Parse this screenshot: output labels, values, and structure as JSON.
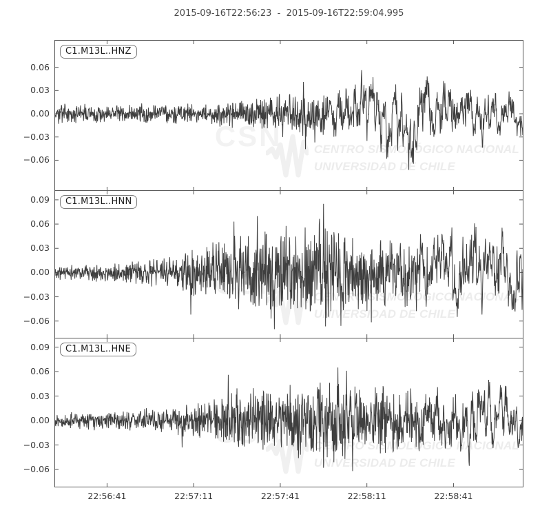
{
  "title": "2015-09-16T22:56:23  -  2015-09-16T22:59:04.995",
  "colors": {
    "waveform": "#3f3f3f",
    "axis": "#555555",
    "tick_label": "#3a3a3a",
    "title_text": "#4a4a4a",
    "watermark": "#ececec",
    "label_box_border": "#7d7d7d"
  },
  "watermark": {
    "acronym": "CSN",
    "line1": "CENTRO SISMOLÓGICO NACIONAL",
    "line2": "UNIVERSIDAD DE CHILE"
  },
  "xaxis": {
    "start": "2015-09-16T22:56:23",
    "end": "2015-09-16T22:59:04.995",
    "duration_seconds": 161.995,
    "ticks": [
      {
        "t": 18,
        "label": "22:56:41"
      },
      {
        "t": 48,
        "label": "22:57:11"
      },
      {
        "t": 78,
        "label": "22:57:41"
      },
      {
        "t": 108,
        "label": "22:58:11"
      },
      {
        "t": 138,
        "label": "22:58:41"
      }
    ]
  },
  "chart_data": [
    {
      "type": "line",
      "label": "C1.M13L..HNZ",
      "ylim": [
        -0.0988,
        0.0944
      ],
      "yticks": [
        {
          "v": 0.06,
          "label": "0.06"
        },
        {
          "v": 0.03,
          "label": "0.03"
        },
        {
          "v": 0.0,
          "label": "0.00"
        },
        {
          "v": -0.03,
          "label": "−0.03"
        },
        {
          "v": -0.06,
          "label": "−0.06"
        }
      ],
      "envelope": {
        "t": [
          0,
          20,
          40,
          55,
          65,
          75,
          85,
          95,
          105,
          115,
          125,
          135,
          145,
          155,
          162
        ],
        "amp": [
          0.011,
          0.011,
          0.012,
          0.014,
          0.017,
          0.021,
          0.025,
          0.027,
          0.029,
          0.03,
          0.027,
          0.023,
          0.019,
          0.016,
          0.014
        ]
      },
      "spikes": [
        [
          86,
          0.041
        ],
        [
          90,
          -0.037
        ],
        [
          108,
          -0.035
        ],
        [
          118,
          0.038
        ]
      ],
      "smooth_ramp": [
        78,
        112
      ],
      "seed": 3
    },
    {
      "type": "line",
      "label": "C1.M13L..HNN",
      "ylim": [
        -0.0807,
        0.101
      ],
      "yticks": [
        {
          "v": 0.09,
          "label": "0.09"
        },
        {
          "v": 0.06,
          "label": "0.06"
        },
        {
          "v": 0.03,
          "label": "0.03"
        },
        {
          "v": 0.0,
          "label": "0.00"
        },
        {
          "v": -0.03,
          "label": "−0.03"
        },
        {
          "v": -0.06,
          "label": "−0.06"
        }
      ],
      "envelope": {
        "t": [
          0,
          15,
          30,
          40,
          50,
          58,
          65,
          72,
          80,
          88,
          93,
          100,
          110,
          118,
          126,
          134,
          142,
          150,
          156,
          162
        ],
        "amp": [
          0.008,
          0.01,
          0.014,
          0.019,
          0.028,
          0.038,
          0.043,
          0.048,
          0.051,
          0.056,
          0.06,
          0.049,
          0.043,
          0.039,
          0.034,
          0.031,
          0.03,
          0.028,
          0.032,
          0.026
        ]
      },
      "spikes": [
        [
          47,
          -0.052
        ],
        [
          62,
          0.063
        ],
        [
          70,
          0.07
        ],
        [
          76,
          -0.07
        ],
        [
          93,
          0.085
        ],
        [
          99,
          -0.066
        ]
      ],
      "smooth_ramp": [
        112,
        142
      ],
      "seed": 11
    },
    {
      "type": "line",
      "label": "C1.M13L..HNE",
      "ylim": [
        -0.0811,
        0.1006
      ],
      "yticks": [
        {
          "v": 0.09,
          "label": "0.09"
        },
        {
          "v": 0.06,
          "label": "0.06"
        },
        {
          "v": 0.03,
          "label": "0.03"
        },
        {
          "v": 0.0,
          "label": "0.00"
        },
        {
          "v": -0.03,
          "label": "−0.03"
        },
        {
          "v": -0.06,
          "label": "−0.06"
        }
      ],
      "envelope": {
        "t": [
          0,
          20,
          35,
          45,
          55,
          62,
          70,
          80,
          90,
          98,
          105,
          112,
          120,
          130,
          140,
          150,
          162
        ],
        "amp": [
          0.009,
          0.011,
          0.014,
          0.018,
          0.026,
          0.034,
          0.038,
          0.04,
          0.044,
          0.05,
          0.042,
          0.038,
          0.035,
          0.03,
          0.026,
          0.024,
          0.02
        ]
      },
      "spikes": [
        [
          44,
          -0.033
        ],
        [
          60,
          0.056
        ],
        [
          93,
          -0.058
        ],
        [
          98,
          0.065
        ],
        [
          101,
          0.061
        ],
        [
          103,
          -0.062
        ]
      ],
      "smooth_ramp": [
        115,
        145
      ],
      "seed": 27
    }
  ]
}
